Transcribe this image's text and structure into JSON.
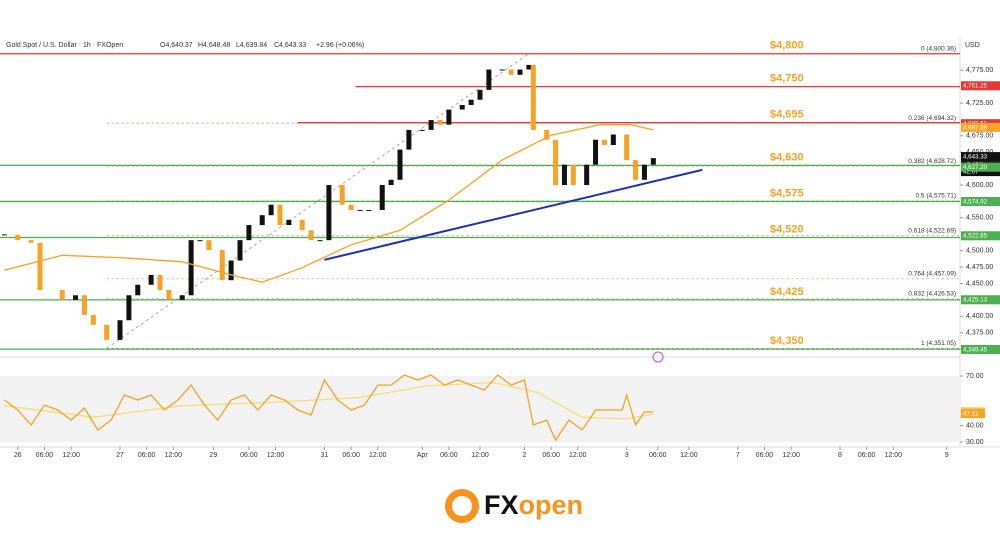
{
  "chart_data": [
    {
      "type": "candlestick",
      "title": "Gold Spot / U.S. Dollar · 1h · FXOpen",
      "ohlc": [
        "O4,640.37",
        "H4,648.48",
        "L4,639.84",
        "C4,643.33",
        "+2.96 (+0.06%)"
      ],
      "y_axis_label": "USD",
      "x": [
        0,
        3,
        6,
        8,
        13,
        16,
        18,
        20,
        23,
        26,
        28,
        30,
        33,
        35,
        37,
        40,
        42,
        44,
        46,
        49,
        51,
        53,
        55,
        58,
        60,
        62,
        64,
        67,
        69,
        71,
        73,
        76,
        78,
        80,
        82,
        85,
        87,
        89,
        91,
        94,
        96,
        98,
        100,
        103,
        105,
        107,
        109,
        112,
        114,
        116,
        118,
        119,
        122,
        124,
        126,
        128,
        131,
        133,
        135,
        137,
        140,
        142,
        144,
        146
      ],
      "values": [
        4524,
        4516,
        4512,
        4440,
        4425,
        4432,
        4402,
        4387,
        4364,
        4394,
        4432,
        4448,
        4463,
        4440,
        4425,
        4432,
        4516,
        4516,
        4501,
        4455,
        4485,
        4516,
        4539,
        4554,
        4570,
        4539,
        4547,
        4531,
        4516,
        4516,
        4600,
        4570,
        4562,
        4562,
        4562,
        4600,
        4608,
        4654,
        4684,
        4684,
        4699,
        4692,
        4715,
        4722,
        4730,
        4745,
        4776,
        4776,
        4768,
        4776,
        4783,
        4684,
        4669,
        4600,
        4631,
        4600,
        4631,
        4669,
        4661,
        4677,
        4638,
        4608,
        4631,
        4641
      ],
      "up_color": "#111111",
      "down_color": "#f7a325",
      "xlim": [
        -1,
        215
      ],
      "ylim": [
        4341,
        4821
      ],
      "yticks": [
        {
          "value": 4350,
          "label": "4,350.00"
        },
        {
          "value": 4375,
          "label": "4,375.00"
        },
        {
          "value": 4400,
          "label": "4,400.00"
        },
        {
          "value": 4450,
          "label": "4,450.00"
        },
        {
          "value": 4475,
          "label": "4,475.00"
        },
        {
          "value": 4500,
          "label": "4,500.00"
        },
        {
          "value": 4550,
          "label": "4,550.00"
        },
        {
          "value": 4600,
          "label": "4,600.00"
        },
        {
          "value": 4650,
          "label": "4,650.00"
        },
        {
          "value": 4675,
          "label": "4,675.00"
        },
        {
          "value": 4725,
          "label": "4,725.00"
        },
        {
          "value": 4775,
          "label": "4,775.00"
        }
      ],
      "xticks": [
        {
          "value": 3,
          "label": "26"
        },
        {
          "value": 9,
          "label": "06:00"
        },
        {
          "value": 15,
          "label": "12:00"
        },
        {
          "value": 26,
          "label": "27"
        },
        {
          "value": 32,
          "label": "06:00"
        },
        {
          "value": 38,
          "label": "12:00"
        },
        {
          "value": 47,
          "label": "29"
        },
        {
          "value": 55,
          "label": "06:00"
        },
        {
          "value": 61,
          "label": "12:00"
        },
        {
          "value": 72,
          "label": "31"
        },
        {
          "value": 78,
          "label": "06:00"
        },
        {
          "value": 84,
          "label": "12:00"
        },
        {
          "value": 94,
          "label": "Apr"
        },
        {
          "value": 100,
          "label": "06:00"
        },
        {
          "value": 107,
          "label": "12:00"
        },
        {
          "value": 117,
          "label": "2"
        },
        {
          "value": 123,
          "label": "06:00"
        },
        {
          "value": 129,
          "label": "12:00"
        },
        {
          "value": 140,
          "label": "3"
        },
        {
          "value": 147,
          "label": "06:00"
        },
        {
          "value": 154,
          "label": "12:00"
        },
        {
          "value": 165,
          "label": "7"
        },
        {
          "value": 171,
          "label": "06:00"
        },
        {
          "value": 177,
          "label": "12:00"
        },
        {
          "value": 188,
          "label": "8"
        },
        {
          "value": 194,
          "label": "06:00"
        },
        {
          "value": 200,
          "label": "12:00"
        },
        {
          "value": 212,
          "label": "9"
        }
      ],
      "series": [
        {
          "color": "#f7a325",
          "x": [
            0,
            13,
            27,
            40,
            51,
            58,
            67,
            78,
            89,
            100,
            112,
            123,
            134,
            141,
            146
          ],
          "values": [
            4470,
            4493,
            4489,
            4483,
            4463,
            4452,
            4474,
            4509,
            4531,
            4577,
            4638,
            4676,
            4692,
            4692,
            4684
          ]
        }
      ],
      "trendlines": [
        {
          "color": "#1f2fb5",
          "x": [
            72,
            157
          ],
          "values": [
            4486,
            4623
          ]
        }
      ],
      "levels": [
        {
          "label": "$4,800",
          "value": 4800,
          "color": "#e53935"
        },
        {
          "label": "$4,750",
          "value": 4750,
          "color": "#e53935",
          "from_x": 79
        },
        {
          "label": "$4,695",
          "value": 4695,
          "color": "#e53935",
          "from_x": 66
        },
        {
          "label": "$4,630",
          "value": 4630,
          "color": "#4caf50"
        },
        {
          "label": "$4,575",
          "value": 4575,
          "color": "#4caf50"
        },
        {
          "label": "$4,520",
          "value": 4520,
          "color": "#4caf50"
        },
        {
          "label": "$4,425",
          "value": 4425,
          "color": "#4caf50"
        },
        {
          "label": "$4,350",
          "value": 4350,
          "color": "#4caf50"
        }
      ],
      "fib_x": [
        23,
        118
      ],
      "fib": [
        {
          "label": "0 (4,800.36)",
          "value": 4800.36
        },
        {
          "label": "0.236 (4,694.32)",
          "value": 4694.32
        },
        {
          "label": "0.382 (4,628.72)",
          "value": 4628.72
        },
        {
          "label": "0.5 (4,575.71)",
          "value": 4575.71
        },
        {
          "label": "0.618 (4,522.69)",
          "value": 4522.69
        },
        {
          "label": "0.764 (4,457.09)",
          "value": 4457.09
        },
        {
          "label": "0.832 (4,426.53)",
          "value": 4426.53
        },
        {
          "label": "1 (4,351.05)",
          "value": 4351.05
        }
      ],
      "badges": [
        {
          "label": "4,751.25",
          "value": 4751.25,
          "color": "#e53935"
        },
        {
          "label": "4,693.51",
          "value": 4693.51,
          "color": "#e53935"
        },
        {
          "label": "4,687.88",
          "value": 4687.88,
          "color": "#f7a325"
        },
        {
          "label": "4,643.33",
          "value": 4643.33,
          "color": "#111111"
        },
        {
          "label": "4,627.20",
          "value": 4627.2,
          "color": "#4caf50"
        },
        {
          "label": "4,574.92",
          "value": 4574.92,
          "color": "#4caf50"
        },
        {
          "label": "4,522.65",
          "value": 4522.65,
          "color": "#4caf50"
        },
        {
          "label": "4,425.13",
          "value": 4425.13,
          "color": "#4caf50"
        },
        {
          "label": "4,349.45",
          "value": 4349.45,
          "color": "#4caf50"
        }
      ],
      "price_extra": [
        "+2.48%",
        "42:07"
      ]
    },
    {
      "type": "line",
      "x": [
        0,
        3,
        6,
        9,
        12,
        15,
        18,
        21,
        24,
        27,
        30,
        33,
        36,
        39,
        42,
        45,
        48,
        51,
        54,
        57,
        60,
        63,
        66,
        69,
        72,
        75,
        78,
        81,
        84,
        87,
        90,
        93,
        96,
        99,
        102,
        105,
        108,
        111,
        114,
        117,
        119,
        122,
        124,
        127,
        130,
        133,
        136,
        139,
        140,
        142,
        144,
        146
      ],
      "values": [
        55.5,
        49.4,
        40.3,
        52.4,
        49.4,
        43.3,
        50.6,
        37.3,
        43.3,
        58.5,
        55.5,
        58.5,
        49.4,
        55.5,
        64.5,
        52.4,
        43.3,
        55.5,
        58.5,
        49.4,
        58.5,
        55.5,
        49.4,
        46.4,
        67.6,
        55.5,
        49.4,
        52.4,
        64.5,
        64.5,
        70.6,
        67.6,
        70.6,
        64.5,
        67.6,
        64.5,
        61.5,
        70.6,
        64.5,
        67.6,
        40.3,
        43.3,
        31.2,
        43.3,
        37.3,
        49.4,
        49.4,
        49.4,
        58.5,
        40.3,
        48.2,
        48.2
      ],
      "color": "#f7a325",
      "series": [
        {
          "color": "#f5dd76",
          "x": [
            0,
            20,
            40,
            60,
            80,
            95,
            110,
            120,
            130,
            140,
            146
          ],
          "values": [
            52,
            45,
            52,
            54,
            57,
            64,
            66,
            60,
            45,
            44,
            47
          ]
        }
      ],
      "xlim": [
        -1,
        215
      ],
      "ylim": [
        27,
        79.7
      ],
      "yticks": [
        {
          "value": 30,
          "label": "30.00"
        },
        {
          "value": 40,
          "label": "40.00"
        },
        {
          "value": 70,
          "label": "70.00"
        }
      ],
      "badges": [
        {
          "label": "48.26",
          "value": 48.26,
          "color": "#f5c842"
        },
        {
          "label": "47.21",
          "value": 47.21,
          "color": "#f7a325"
        }
      ]
    }
  ],
  "logo": [
    "FX",
    "open"
  ]
}
